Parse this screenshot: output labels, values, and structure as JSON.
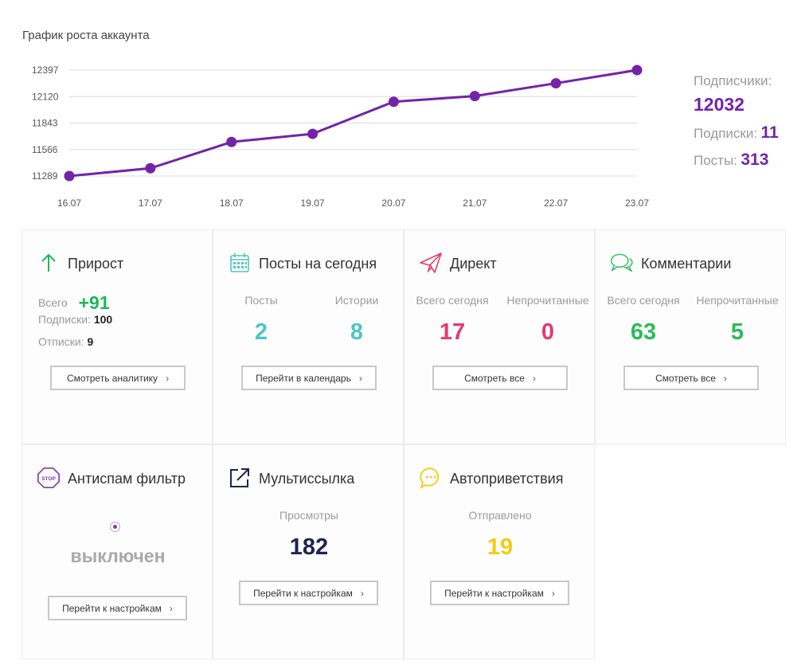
{
  "chart": {
    "title": "График роста аккаунта"
  },
  "chart_data": {
    "type": "line",
    "categories": [
      "16.07",
      "17.07",
      "18.07",
      "19.07",
      "20.07",
      "21.07",
      "22.07",
      "23.07"
    ],
    "values": [
      11289,
      11370,
      11645,
      11730,
      12066,
      12125,
      12259,
      12397
    ],
    "yticks": [
      12397,
      12120,
      11843,
      11566,
      11289
    ],
    "ylim": [
      11289,
      12397
    ],
    "grid": true,
    "color": "#7323a8"
  },
  "stats": {
    "followers_label": "Подписчики:",
    "followers_value": "12032",
    "following_label": "Подписки:",
    "following_value": "11",
    "posts_label": "Посты:",
    "posts_value": "313"
  },
  "cards": {
    "growth": {
      "title": "Прирост",
      "icon": "arrow-up-icon",
      "total_label": "Всего",
      "total_value": "+91",
      "subs_label": "Подписки:",
      "subs_value": "100",
      "unsubs_label": "Отписки:",
      "unsubs_value": "9",
      "button": "Смотреть аналитику",
      "color": "#1fb65a"
    },
    "posts": {
      "title": "Посты на сегодня",
      "icon": "calendar-icon",
      "col1_label": "Посты",
      "col1_value": "2",
      "col2_label": "Истории",
      "col2_value": "8",
      "button": "Перейти в календарь",
      "color": "#4ec6c4"
    },
    "direct": {
      "title": "Директ",
      "icon": "paper-plane-icon",
      "col1_label": "Всего сегодня",
      "col1_value": "17",
      "col2_label": "Непрочитанные",
      "col2_value": "0",
      "button": "Смотреть все",
      "color": "#e33b6c"
    },
    "comments": {
      "title": "Комментарии",
      "icon": "chat-bubbles-icon",
      "col1_label": "Всего сегодня",
      "col1_value": "63",
      "col2_label": "Непрочитанные",
      "col2_value": "5",
      "button": "Смотреть все",
      "color": "#2cbc57"
    },
    "antispam": {
      "title": "Антиспам фильтр",
      "icon": "stop-sign-icon",
      "icon_text": "STOP",
      "status": "выключен",
      "button": "Перейти к настройкам",
      "color": "#7a3fb0"
    },
    "multilink": {
      "title": "Мультиссылка",
      "icon": "external-link-icon",
      "label": "Просмотры",
      "value": "182",
      "button": "Перейти к настройкам",
      "color": "#1f2352"
    },
    "greetings": {
      "title": "Автоприветствия",
      "icon": "speech-dots-icon",
      "label": "Отправлено",
      "value": "19",
      "button": "Перейти к настройкам",
      "color": "#f2cc12"
    }
  }
}
